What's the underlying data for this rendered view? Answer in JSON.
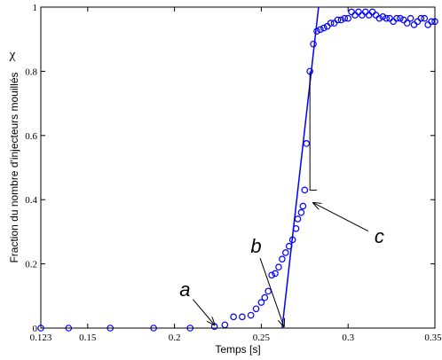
{
  "chart_data": {
    "type": "scatter",
    "xlabel": "Temps [s]",
    "ylabel": "Fraction du nombre d'injecteurs mouillés",
    "ylabel_symbol": "χ",
    "xlim": [
      0.123,
      0.35
    ],
    "ylim": [
      0,
      1
    ],
    "x_ticks": [
      {
        "value": 0.123,
        "label": "0.123"
      },
      {
        "value": 0.15,
        "label": "0.15"
      },
      {
        "value": 0.2,
        "label": "0.2"
      },
      {
        "value": 0.25,
        "label": "0.25"
      },
      {
        "value": 0.3,
        "label": "0.3"
      },
      {
        "value": 0.35,
        "label": "0.35"
      }
    ],
    "y_ticks": [
      {
        "value": 0,
        "label": "0"
      },
      {
        "value": 0.2,
        "label": "0.2"
      },
      {
        "value": 0.4,
        "label": "0.4"
      },
      {
        "value": 0.6,
        "label": "0.6"
      },
      {
        "value": 0.8,
        "label": "0.8"
      },
      {
        "value": 1,
        "label": "1"
      }
    ],
    "grid": false,
    "colors": {
      "markers": "#0000ff",
      "fit_line": "#0000ff",
      "annotation": "#000000"
    },
    "series": [
      {
        "marker": "circle",
        "x": [
          0.123,
          0.139,
          0.163,
          0.188,
          0.209,
          0.223,
          0.229,
          0.234,
          0.239,
          0.244,
          0.247,
          0.25,
          0.252,
          0.254,
          0.256,
          0.258,
          0.26,
          0.262,
          0.264,
          0.266,
          0.268,
          0.27,
          0.271,
          0.273,
          0.274,
          0.275,
          0.276,
          0.278,
          0.28,
          0.282,
          0.284,
          0.286,
          0.288,
          0.29,
          0.292,
          0.294,
          0.296,
          0.298,
          0.3,
          0.302,
          0.304,
          0.306,
          0.308,
          0.31,
          0.312,
          0.314,
          0.316,
          0.318,
          0.32,
          0.322,
          0.324,
          0.326,
          0.328,
          0.33,
          0.332,
          0.334,
          0.336,
          0.338,
          0.34,
          0.342,
          0.344,
          0.346,
          0.348,
          0.35
        ],
        "y": [
          0,
          0,
          0,
          0,
          0,
          0.005,
          0.01,
          0.035,
          0.035,
          0.04,
          0.06,
          0.08,
          0.095,
          0.115,
          0.165,
          0.17,
          0.19,
          0.215,
          0.235,
          0.255,
          0.275,
          0.31,
          0.34,
          0.36,
          0.38,
          0.43,
          0.575,
          0.8,
          0.885,
          0.925,
          0.93,
          0.935,
          0.94,
          0.95,
          0.95,
          0.96,
          0.96,
          0.965,
          0.965,
          0.985,
          0.975,
          0.985,
          0.975,
          0.985,
          0.975,
          0.985,
          0.975,
          0.965,
          0.97,
          0.965,
          0.965,
          0.955,
          0.965,
          0.965,
          0.96,
          0.95,
          0.965,
          0.945,
          0.955,
          0.965,
          0.965,
          0.945,
          0.955,
          0.955
        ]
      }
    ],
    "fit_line": {
      "x": [
        0.262,
        0.283
      ],
      "y": [
        0,
        1.0
      ]
    },
    "annotations": [
      {
        "label": "a",
        "text_x": 0.206,
        "text_y": 0.1,
        "arrow_to_x": 0.223,
        "arrow_to_y": 0.01
      },
      {
        "label": "b",
        "text_x": 0.247,
        "text_y": 0.235,
        "arrow_to_x": 0.263,
        "arrow_to_y": 0.005
      },
      {
        "label": "c",
        "text_x": 0.318,
        "text_y": 0.265,
        "arrow_to_x": 0.28,
        "arrow_to_y": 0.39
      }
    ],
    "bracket": {
      "x": [
        0.278,
        0.282
      ],
      "y_top": 0.8,
      "y_bottom": 0.43
    }
  }
}
